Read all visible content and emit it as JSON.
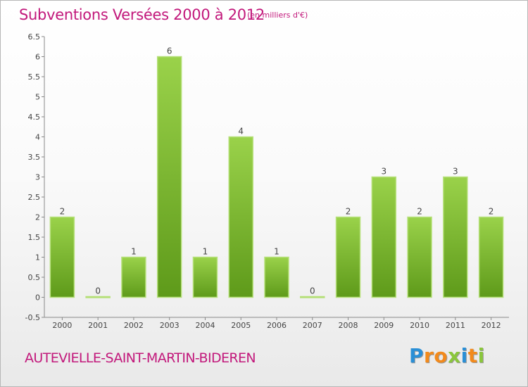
{
  "header": {
    "title": "Subventions Versées 2000 à 2012",
    "unit": "(en milliers d'€)"
  },
  "footer": {
    "commune": "AUTEVIELLE-SAINT-MARTIN-BIDEREN",
    "logo": "Proxiti",
    "logo_letters": [
      "P",
      "r",
      "o",
      "x",
      "i",
      "t",
      "i"
    ],
    "logo_colors": [
      "#2a8fd6",
      "#f28a1c",
      "#f28a1c",
      "#8ac63c",
      "#2a8fd6",
      "#f28a1c",
      "#8ac63c"
    ]
  },
  "chart_data": {
    "type": "bar",
    "categories": [
      "2000",
      "2001",
      "2002",
      "2003",
      "2004",
      "2005",
      "2006",
      "2007",
      "2008",
      "2009",
      "2010",
      "2011",
      "2012"
    ],
    "values": [
      2,
      0,
      1,
      6,
      1,
      4,
      1,
      0,
      2,
      3,
      2,
      3,
      2
    ],
    "data_labels": [
      "2",
      "0",
      "1",
      "6",
      "1",
      "4",
      "1",
      "0",
      "2",
      "3",
      "2",
      "3",
      "2"
    ],
    "yticks": [
      "-0.5",
      "0",
      "0.5",
      "1",
      "1.5",
      "2",
      "2.5",
      "3",
      "3.5",
      "4",
      "4.5",
      "5",
      "5.5",
      "6",
      "6.5"
    ],
    "ylim": [
      -0.5,
      6.5
    ],
    "grid": false,
    "bar_color": "#84c23a",
    "bar_color_dark": "#5e9a1a"
  }
}
